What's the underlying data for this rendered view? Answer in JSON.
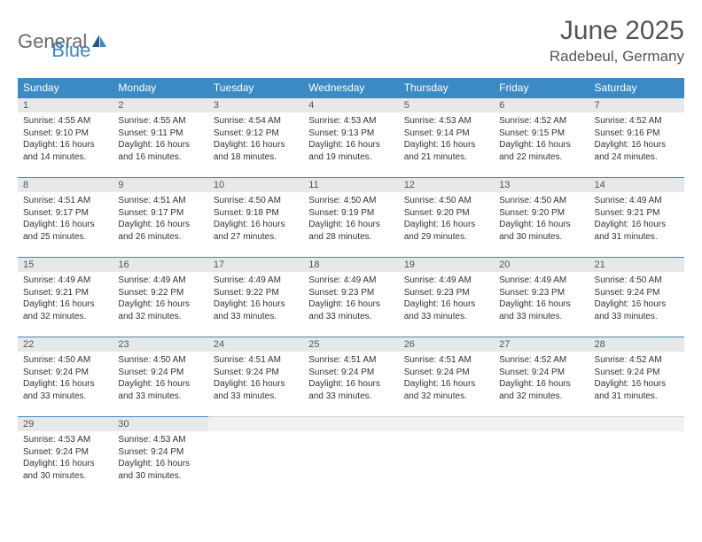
{
  "logo": {
    "general": "General",
    "blue": "Blue"
  },
  "title": "June 2025",
  "location": "Radebeul, Germany",
  "colors": {
    "header_bg": "#3b8ac4",
    "header_text": "#ffffff",
    "daynum_bg": "#e8e8e8",
    "daynum_border": "#3b8ac4",
    "body_text": "#333333",
    "title_text": "#555555",
    "logo_gray": "#6a6a6a",
    "logo_blue": "#3b8ac4"
  },
  "typography": {
    "title_fontsize": 30,
    "location_fontsize": 17,
    "dow_fontsize": 12,
    "daynum_fontsize": 11,
    "content_fontsize": 10
  },
  "daysOfWeek": [
    "Sunday",
    "Monday",
    "Tuesday",
    "Wednesday",
    "Thursday",
    "Friday",
    "Saturday"
  ],
  "weeks": [
    [
      {
        "n": "1",
        "sunrise": "Sunrise: 4:55 AM",
        "sunset": "Sunset: 9:10 PM",
        "daylight1": "Daylight: 16 hours",
        "daylight2": "and 14 minutes."
      },
      {
        "n": "2",
        "sunrise": "Sunrise: 4:55 AM",
        "sunset": "Sunset: 9:11 PM",
        "daylight1": "Daylight: 16 hours",
        "daylight2": "and 16 minutes."
      },
      {
        "n": "3",
        "sunrise": "Sunrise: 4:54 AM",
        "sunset": "Sunset: 9:12 PM",
        "daylight1": "Daylight: 16 hours",
        "daylight2": "and 18 minutes."
      },
      {
        "n": "4",
        "sunrise": "Sunrise: 4:53 AM",
        "sunset": "Sunset: 9:13 PM",
        "daylight1": "Daylight: 16 hours",
        "daylight2": "and 19 minutes."
      },
      {
        "n": "5",
        "sunrise": "Sunrise: 4:53 AM",
        "sunset": "Sunset: 9:14 PM",
        "daylight1": "Daylight: 16 hours",
        "daylight2": "and 21 minutes."
      },
      {
        "n": "6",
        "sunrise": "Sunrise: 4:52 AM",
        "sunset": "Sunset: 9:15 PM",
        "daylight1": "Daylight: 16 hours",
        "daylight2": "and 22 minutes."
      },
      {
        "n": "7",
        "sunrise": "Sunrise: 4:52 AM",
        "sunset": "Sunset: 9:16 PM",
        "daylight1": "Daylight: 16 hours",
        "daylight2": "and 24 minutes."
      }
    ],
    [
      {
        "n": "8",
        "sunrise": "Sunrise: 4:51 AM",
        "sunset": "Sunset: 9:17 PM",
        "daylight1": "Daylight: 16 hours",
        "daylight2": "and 25 minutes."
      },
      {
        "n": "9",
        "sunrise": "Sunrise: 4:51 AM",
        "sunset": "Sunset: 9:17 PM",
        "daylight1": "Daylight: 16 hours",
        "daylight2": "and 26 minutes."
      },
      {
        "n": "10",
        "sunrise": "Sunrise: 4:50 AM",
        "sunset": "Sunset: 9:18 PM",
        "daylight1": "Daylight: 16 hours",
        "daylight2": "and 27 minutes."
      },
      {
        "n": "11",
        "sunrise": "Sunrise: 4:50 AM",
        "sunset": "Sunset: 9:19 PM",
        "daylight1": "Daylight: 16 hours",
        "daylight2": "and 28 minutes."
      },
      {
        "n": "12",
        "sunrise": "Sunrise: 4:50 AM",
        "sunset": "Sunset: 9:20 PM",
        "daylight1": "Daylight: 16 hours",
        "daylight2": "and 29 minutes."
      },
      {
        "n": "13",
        "sunrise": "Sunrise: 4:50 AM",
        "sunset": "Sunset: 9:20 PM",
        "daylight1": "Daylight: 16 hours",
        "daylight2": "and 30 minutes."
      },
      {
        "n": "14",
        "sunrise": "Sunrise: 4:49 AM",
        "sunset": "Sunset: 9:21 PM",
        "daylight1": "Daylight: 16 hours",
        "daylight2": "and 31 minutes."
      }
    ],
    [
      {
        "n": "15",
        "sunrise": "Sunrise: 4:49 AM",
        "sunset": "Sunset: 9:21 PM",
        "daylight1": "Daylight: 16 hours",
        "daylight2": "and 32 minutes."
      },
      {
        "n": "16",
        "sunrise": "Sunrise: 4:49 AM",
        "sunset": "Sunset: 9:22 PM",
        "daylight1": "Daylight: 16 hours",
        "daylight2": "and 32 minutes."
      },
      {
        "n": "17",
        "sunrise": "Sunrise: 4:49 AM",
        "sunset": "Sunset: 9:22 PM",
        "daylight1": "Daylight: 16 hours",
        "daylight2": "and 33 minutes."
      },
      {
        "n": "18",
        "sunrise": "Sunrise: 4:49 AM",
        "sunset": "Sunset: 9:23 PM",
        "daylight1": "Daylight: 16 hours",
        "daylight2": "and 33 minutes."
      },
      {
        "n": "19",
        "sunrise": "Sunrise: 4:49 AM",
        "sunset": "Sunset: 9:23 PM",
        "daylight1": "Daylight: 16 hours",
        "daylight2": "and 33 minutes."
      },
      {
        "n": "20",
        "sunrise": "Sunrise: 4:49 AM",
        "sunset": "Sunset: 9:23 PM",
        "daylight1": "Daylight: 16 hours",
        "daylight2": "and 33 minutes."
      },
      {
        "n": "21",
        "sunrise": "Sunrise: 4:50 AM",
        "sunset": "Sunset: 9:24 PM",
        "daylight1": "Daylight: 16 hours",
        "daylight2": "and 33 minutes."
      }
    ],
    [
      {
        "n": "22",
        "sunrise": "Sunrise: 4:50 AM",
        "sunset": "Sunset: 9:24 PM",
        "daylight1": "Daylight: 16 hours",
        "daylight2": "and 33 minutes."
      },
      {
        "n": "23",
        "sunrise": "Sunrise: 4:50 AM",
        "sunset": "Sunset: 9:24 PM",
        "daylight1": "Daylight: 16 hours",
        "daylight2": "and 33 minutes."
      },
      {
        "n": "24",
        "sunrise": "Sunrise: 4:51 AM",
        "sunset": "Sunset: 9:24 PM",
        "daylight1": "Daylight: 16 hours",
        "daylight2": "and 33 minutes."
      },
      {
        "n": "25",
        "sunrise": "Sunrise: 4:51 AM",
        "sunset": "Sunset: 9:24 PM",
        "daylight1": "Daylight: 16 hours",
        "daylight2": "and 33 minutes."
      },
      {
        "n": "26",
        "sunrise": "Sunrise: 4:51 AM",
        "sunset": "Sunset: 9:24 PM",
        "daylight1": "Daylight: 16 hours",
        "daylight2": "and 32 minutes."
      },
      {
        "n": "27",
        "sunrise": "Sunrise: 4:52 AM",
        "sunset": "Sunset: 9:24 PM",
        "daylight1": "Daylight: 16 hours",
        "daylight2": "and 32 minutes."
      },
      {
        "n": "28",
        "sunrise": "Sunrise: 4:52 AM",
        "sunset": "Sunset: 9:24 PM",
        "daylight1": "Daylight: 16 hours",
        "daylight2": "and 31 minutes."
      }
    ],
    [
      {
        "n": "29",
        "sunrise": "Sunrise: 4:53 AM",
        "sunset": "Sunset: 9:24 PM",
        "daylight1": "Daylight: 16 hours",
        "daylight2": "and 30 minutes."
      },
      {
        "n": "30",
        "sunrise": "Sunrise: 4:53 AM",
        "sunset": "Sunset: 9:24 PM",
        "daylight1": "Daylight: 16 hours",
        "daylight2": "and 30 minutes."
      },
      null,
      null,
      null,
      null,
      null
    ]
  ]
}
